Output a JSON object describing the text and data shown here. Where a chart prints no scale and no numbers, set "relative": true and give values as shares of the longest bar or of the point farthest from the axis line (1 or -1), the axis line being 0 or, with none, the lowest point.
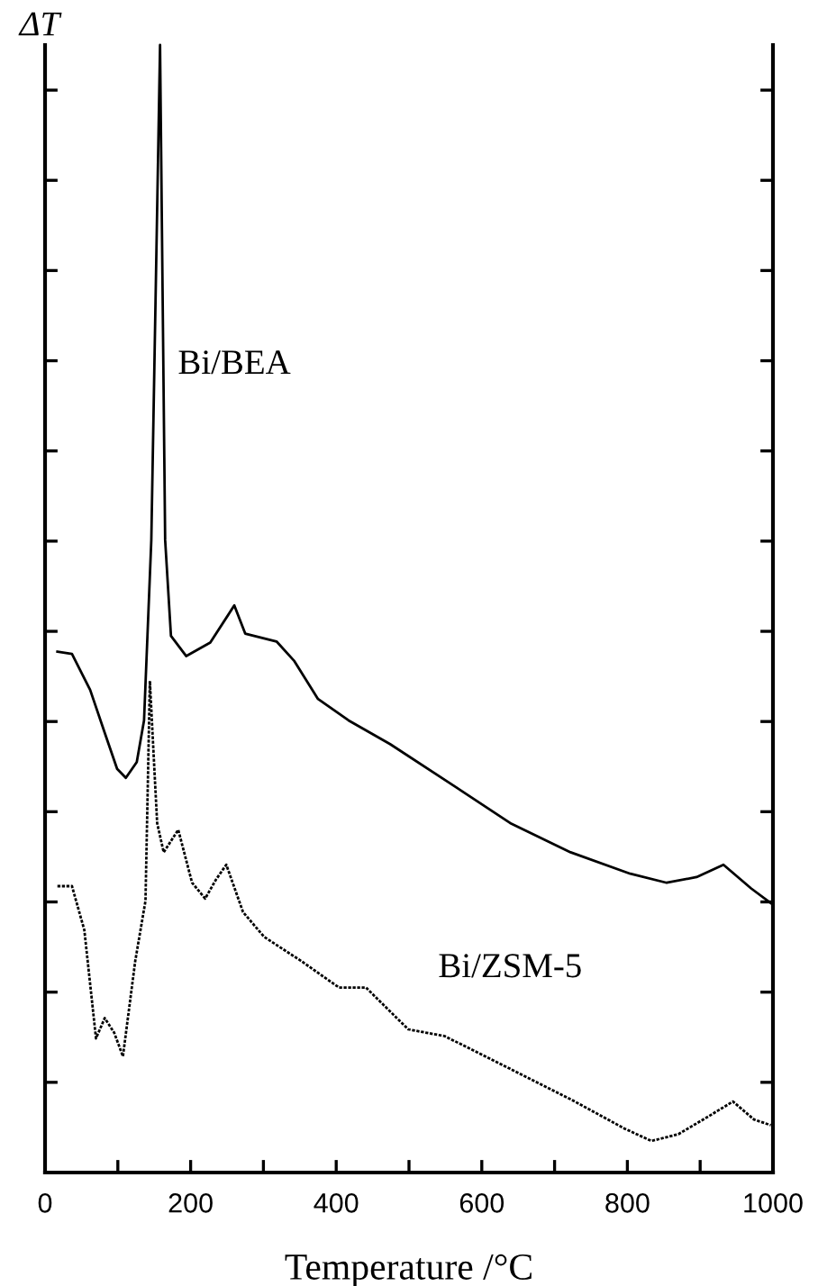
{
  "chart_data": {
    "type": "line",
    "relative": true,
    "ylabel": "ΔT",
    "xlabel": "Temperature /°C",
    "xlim": [
      0,
      1000
    ],
    "xticks": [
      0,
      {
        "value": 100,
        "label": null
      },
      200,
      {
        "value": 300,
        "label": null
      },
      400,
      {
        "value": 500,
        "label": null
      },
      600,
      {
        "value": 700,
        "label": null
      },
      800,
      {
        "value": 900,
        "label": null
      },
      1000
    ],
    "grid": false,
    "legend": false,
    "marker": "none",
    "series": [
      {
        "name": "Bi/BEA",
        "color": "#000000",
        "line_style": "solid",
        "x": [
          17,
          37,
          62,
          82,
          99,
          111,
          126,
          136,
          146,
          158,
          165,
          173,
          194,
          227,
          260,
          275,
          318,
          342,
          375,
          417,
          474,
          557,
          639,
          722,
          804,
          854,
          895,
          932,
          970,
          997
        ],
        "values": [
          0.462,
          0.46,
          0.428,
          0.39,
          0.358,
          0.35,
          0.364,
          0.401,
          0.561,
          1.0,
          0.561,
          0.476,
          0.458,
          0.47,
          0.503,
          0.478,
          0.471,
          0.454,
          0.42,
          0.401,
          0.38,
          0.345,
          0.31,
          0.284,
          0.265,
          0.257,
          0.262,
          0.273,
          0.252,
          0.239
        ]
      },
      {
        "name": "Bi/ZSM-5",
        "color": "#000000",
        "line_style": "dotted",
        "x": [
          17,
          37,
          54,
          70,
          82,
          95,
          107,
          124,
          138,
          144,
          154,
          163,
          173,
          183,
          202,
          220,
          235,
          249,
          272,
          301,
          351,
          404,
          441,
          499,
          549,
          639,
          722,
          796,
          833,
          870,
          912,
          945,
          974,
          997
        ],
        "values": [
          0.254,
          0.254,
          0.215,
          0.119,
          0.137,
          0.124,
          0.103,
          0.188,
          0.241,
          0.436,
          0.31,
          0.284,
          0.294,
          0.304,
          0.257,
          0.243,
          0.26,
          0.273,
          0.231,
          0.209,
          0.188,
          0.164,
          0.164,
          0.127,
          0.121,
          0.092,
          0.065,
          0.039,
          0.028,
          0.034,
          0.05,
          0.063,
          0.047,
          0.042
        ]
      }
    ]
  }
}
